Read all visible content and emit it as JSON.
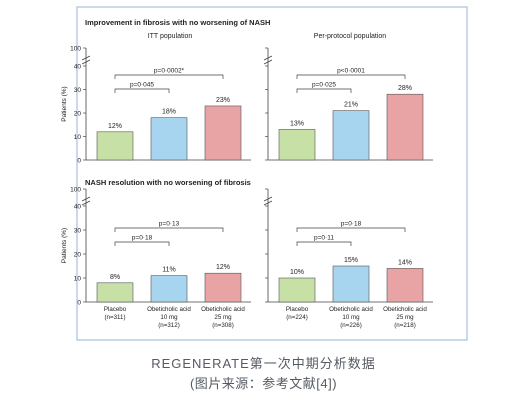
{
  "sections": [
    {
      "title": "Improvement in fibrosis with no worsening of NASH"
    },
    {
      "title": "NASH resolution with no worsening of fibrosis"
    }
  ],
  "y_axis": {
    "label": "Patients (%)",
    "ticks": [
      0,
      10,
      20,
      30,
      40
    ],
    "top_tick": 100
  },
  "colors": {
    "placebo": "#c6e0a6",
    "ocaliva_10": "#a7d4ee",
    "ocaliva_25": "#e8a4a4",
    "frame": "#a7c1e0",
    "bracket": "#444444",
    "text": "#222222"
  },
  "chart_data": [
    {
      "type": "bar",
      "title": "Improvement in fibrosis with no worsening of NASH",
      "subtitle": "ITT population",
      "ylabel": "Patients (%)",
      "ylim": [
        0,
        40
      ],
      "axis_break": true,
      "categories": [
        "Placebo",
        "Obeticholic acid 10 mg",
        "Obeticholic acid 25 mg"
      ],
      "values": [
        12,
        18,
        23
      ],
      "value_labels": [
        "12%",
        "18%",
        "23%"
      ],
      "comparisons": [
        {
          "from": 0,
          "to": 1,
          "label": "p=0·045"
        },
        {
          "from": 0,
          "to": 2,
          "label": "p=0·0002*"
        }
      ]
    },
    {
      "type": "bar",
      "title": "",
      "subtitle": "Per-protocol population",
      "ylabel": "",
      "ylim": [
        0,
        40
      ],
      "axis_break": true,
      "categories": [
        "Placebo",
        "Obeticholic acid 10 mg",
        "Obeticholic acid 25 mg"
      ],
      "values": [
        13,
        21,
        28
      ],
      "value_labels": [
        "13%",
        "21%",
        "28%"
      ],
      "comparisons": [
        {
          "from": 0,
          "to": 1,
          "label": "p=0·025"
        },
        {
          "from": 0,
          "to": 2,
          "label": "p<0·0001"
        }
      ]
    },
    {
      "type": "bar",
      "title": "NASH resolution with no worsening of fibrosis",
      "subtitle": "",
      "ylabel": "Patients (%)",
      "ylim": [
        0,
        40
      ],
      "axis_break": true,
      "categories": [
        "Placebo",
        "Obeticholic acid 10 mg",
        "Obeticholic acid 25 mg"
      ],
      "category_labels": [
        [
          "Placebo",
          "(n=311)"
        ],
        [
          "Obeticholic acid",
          "10 mg",
          "(n=312)"
        ],
        [
          "Obeticholic acid",
          "25 mg",
          "(n=308)"
        ]
      ],
      "values": [
        8,
        11,
        12
      ],
      "value_labels": [
        "8%",
        "11%",
        "12%"
      ],
      "comparisons": [
        {
          "from": 0,
          "to": 1,
          "label": "p=0·18"
        },
        {
          "from": 0,
          "to": 2,
          "label": "p=0·13"
        }
      ]
    },
    {
      "type": "bar",
      "title": "",
      "subtitle": "",
      "ylabel": "",
      "ylim": [
        0,
        40
      ],
      "axis_break": true,
      "categories": [
        "Placebo",
        "Obeticholic acid 10 mg",
        "Obeticholic acid 25 mg"
      ],
      "category_labels": [
        [
          "Placebo",
          "(n=224)"
        ],
        [
          "Obeticholic acid",
          "10 mg",
          "(n=226)"
        ],
        [
          "Obeticholic acid",
          "25 mg",
          "(n=218)"
        ]
      ],
      "values": [
        10,
        15,
        14
      ],
      "value_labels": [
        "10%",
        "15%",
        "14%"
      ],
      "comparisons": [
        {
          "from": 0,
          "to": 1,
          "label": "p=0·11"
        },
        {
          "from": 0,
          "to": 2,
          "label": "p=0·18"
        }
      ]
    }
  ],
  "caption": {
    "line1": "REGENERATE第一次中期分析数据",
    "line2": "(图片来源：参考文献[4])"
  }
}
